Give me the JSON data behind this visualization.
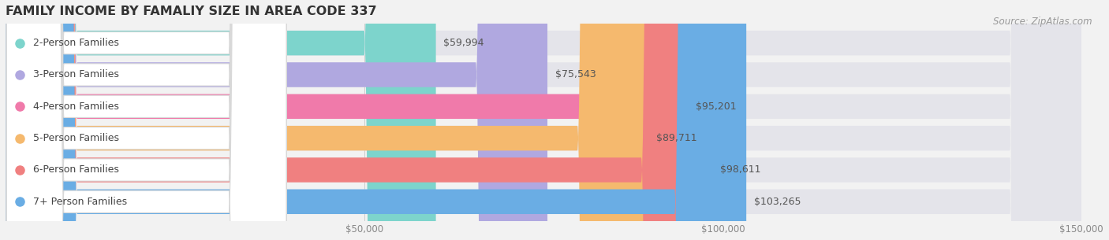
{
  "title": "FAMILY INCOME BY FAMALIY SIZE IN AREA CODE 337",
  "source": "Source: ZipAtlas.com",
  "categories": [
    "2-Person Families",
    "3-Person Families",
    "4-Person Families",
    "5-Person Families",
    "6-Person Families",
    "7+ Person Families"
  ],
  "values": [
    59994,
    75543,
    95201,
    89711,
    98611,
    103265
  ],
  "bar_colors": [
    "#7dd4cc",
    "#b0a8e0",
    "#f07aaa",
    "#f5b96e",
    "#f08080",
    "#6aade4"
  ],
  "value_labels": [
    "$59,994",
    "$75,543",
    "$95,201",
    "$89,711",
    "$98,611",
    "$103,265"
  ],
  "xlim": [
    0,
    150000
  ],
  "xtick_values": [
    50000,
    100000,
    150000
  ],
  "xtick_labels": [
    "$50,000",
    "$100,000",
    "$150,000"
  ],
  "background_color": "#f2f2f2",
  "bar_bg_color": "#e4e4ea",
  "row_sep_color": "#ffffff",
  "title_fontsize": 11.5,
  "source_fontsize": 8.5,
  "bar_height": 0.78,
  "label_fontsize": 9,
  "value_fontsize": 9
}
